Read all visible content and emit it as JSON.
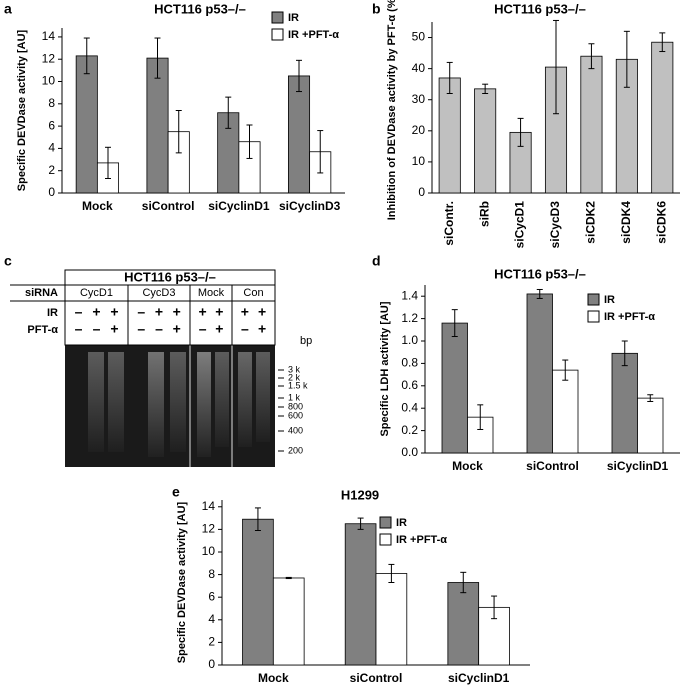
{
  "panel_labels": [
    "a",
    "b",
    "c",
    "d",
    "e"
  ],
  "chart_data": [
    {
      "type": "bar",
      "title": "HCT116 p53–/–",
      "y_label": "Specific DEVDase activity [AU]",
      "categories": [
        "Mock",
        "siControl",
        "siCyclinD1",
        "siCyclinD3"
      ],
      "series": [
        {
          "name": "IR",
          "color": "#808080",
          "values": [
            12.3,
            12.1,
            7.2,
            10.5
          ],
          "errors": [
            1.6,
            1.8,
            1.4,
            1.4
          ]
        },
        {
          "name": "IR +PFT-α",
          "color": "#ffffff",
          "values": [
            2.7,
            5.5,
            4.6,
            3.7
          ],
          "errors": [
            1.4,
            1.9,
            1.5,
            1.9
          ]
        }
      ],
      "ylim": [
        0,
        14.8
      ],
      "yticks": [
        0,
        2,
        4,
        6,
        8,
        10,
        12,
        14
      ],
      "legend": "upper right"
    },
    {
      "type": "bar",
      "title": "HCT116 p53–/–",
      "y_label": "Inhibition of DEVDase activity by PFT-α (%)",
      "categories": [
        "siContr.",
        "siRb",
        "siCycD1",
        "siCycD3",
        "siCDK2",
        "siCDK4",
        "siCDK6"
      ],
      "series": [
        {
          "name": null,
          "color": "#c0c0c0",
          "values": [
            37,
            33.5,
            19.5,
            40.5,
            44,
            43,
            48.5
          ],
          "errors": [
            5,
            1.5,
            4.5,
            15,
            4,
            9,
            3
          ]
        }
      ],
      "ylim": [
        0,
        55
      ],
      "yticks": [
        0,
        10,
        20,
        30,
        40,
        50
      ],
      "xtick_rotation": 90
    },
    {
      "type": "bar",
      "title": "HCT116 p53–/–",
      "y_label": "Specific LDH activity [AU]",
      "categories": [
        "Mock",
        "siControl",
        "siCyclinD1"
      ],
      "series": [
        {
          "name": "IR",
          "color": "#808080",
          "values": [
            1.16,
            1.42,
            0.89
          ],
          "errors": [
            0.12,
            0.04,
            0.11
          ]
        },
        {
          "name": "IR +PFT-α",
          "color": "#ffffff",
          "values": [
            0.32,
            0.74,
            0.49
          ],
          "errors": [
            0.11,
            0.09,
            0.03
          ]
        }
      ],
      "ylim": [
        0,
        1.5
      ],
      "yticks": [
        {
          "value": 0,
          "label": "0.0"
        },
        0.2,
        0.4,
        0.6,
        0.8,
        {
          "value": 1,
          "label": "1.0"
        },
        1.2,
        1.4
      ],
      "legend": "upper right"
    },
    {
      "type": "bar",
      "title": "H1299",
      "y_label": "Specific DEVDase activity [AU]",
      "categories": [
        "Mock",
        "siControl",
        "siCyclinD1"
      ],
      "series": [
        {
          "name": "IR",
          "color": "#808080",
          "values": [
            12.9,
            12.5,
            7.3
          ],
          "errors": [
            1.0,
            0.5,
            0.9
          ]
        },
        {
          "name": "IR +PFT-α",
          "color": "#ffffff",
          "values": [
            7.7,
            8.1,
            5.1
          ],
          "errors": [
            0.05,
            0.8,
            1.0
          ]
        }
      ],
      "ylim": [
        0,
        14.6
      ],
      "yticks": [
        0,
        2,
        4,
        6,
        8,
        10,
        12,
        14
      ],
      "legend": "upper right"
    }
  ],
  "gel": {
    "title": "HCT116 p53–/–",
    "row_labels": [
      "siRNA",
      "IR",
      "PFT-α"
    ],
    "groups": [
      {
        "name": "CycD1",
        "ir": [
          "–",
          "+",
          "+"
        ],
        "pft": [
          "–",
          "–",
          "+"
        ]
      },
      {
        "name": "CycD3",
        "ir": [
          "–",
          "+",
          "+"
        ],
        "pft": [
          "–",
          "–",
          "+"
        ]
      },
      {
        "name": "Mock",
        "ir": [
          "+",
          "+"
        ],
        "pft": [
          "–",
          "+"
        ]
      },
      {
        "name": "Con",
        "ir": [
          "+",
          "+"
        ],
        "pft": [
          "–",
          "+"
        ]
      }
    ],
    "unit": "bp",
    "markers": [
      "3 k",
      "2 k",
      "1.5 k",
      "1 k",
      "800",
      "600",
      "400",
      "200"
    ]
  }
}
